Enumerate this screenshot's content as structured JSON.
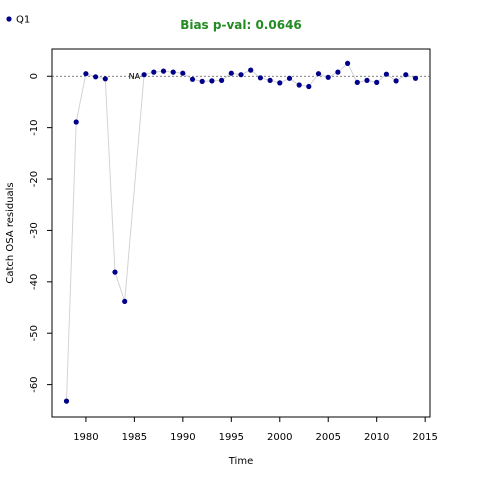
{
  "chart_data": {
    "type": "scatter",
    "title": "Bias p-val: 0.0646",
    "title_color": "#228b22",
    "xlabel": "Time",
    "ylabel": "Catch OSA residuals",
    "xlim": [
      1976.5,
      2015.5
    ],
    "ylim": [
      -66.3,
      5.3
    ],
    "x_ticks": [
      1980,
      1985,
      1990,
      1995,
      2000,
      2005,
      2010,
      2015
    ],
    "y_ticks": [
      0,
      -10,
      -20,
      -30,
      -40,
      -50,
      -60
    ],
    "legend": {
      "position": "top-left",
      "entries": [
        "Q1"
      ]
    },
    "na_label": {
      "text": "NA",
      "x": 1985,
      "y": 0
    },
    "reference_line_y": 0,
    "marker_color": "#00008b",
    "line_color": "#d3d3d3",
    "series": [
      {
        "name": "Q1",
        "x": [
          1978,
          1979,
          1980,
          1981,
          1982,
          1983,
          1984,
          1986,
          1987,
          1988,
          1989,
          1990,
          1991,
          1992,
          1993,
          1994,
          1995,
          1996,
          1997,
          1998,
          1999,
          2000,
          2001,
          2002,
          2003,
          2004,
          2005,
          2006,
          2007,
          2008,
          2009,
          2010,
          2011,
          2012,
          2013,
          2014
        ],
        "y": [
          -63.2,
          -8.9,
          0.5,
          -0.1,
          -0.5,
          -38.1,
          -43.8,
          0.3,
          0.8,
          1.0,
          0.8,
          0.6,
          -0.6,
          -1.0,
          -0.9,
          -0.8,
          0.6,
          0.3,
          1.2,
          -0.3,
          -0.8,
          -1.3,
          -0.4,
          -1.7,
          -2.0,
          0.5,
          -0.2,
          0.8,
          2.5,
          -1.2,
          -0.8,
          -1.2,
          0.4,
          -0.9,
          0.3,
          -0.4
        ]
      }
    ]
  }
}
